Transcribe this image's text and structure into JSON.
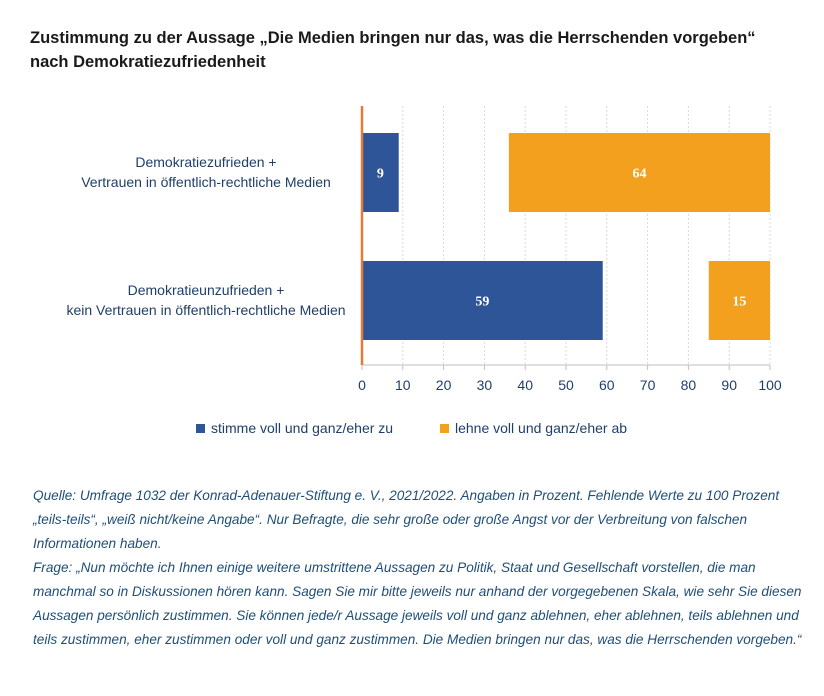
{
  "title_line1": "Zustimmung zu der Aussage „Die Medien bringen nur das, was die Herrschenden vorgeben“",
  "title_line2": "nach Demokratiezufriedenheit",
  "colors": {
    "agree": "#2e5597",
    "disagree": "#f2a01d",
    "axis": "#e07b39",
    "text": "#1f3f6a"
  },
  "chart_data": {
    "type": "bar",
    "orientation": "horizontal",
    "categories": [
      [
        "Demokratiezufrieden +",
        "Vertrauen in öffentlich-rechtliche Medien"
      ],
      [
        "Demokratieunzufrieden +",
        "kein Vertrauen in öffentlich-rechtliche Medien"
      ]
    ],
    "series": [
      {
        "name": "stimme voll und ganz/eher zu",
        "values": [
          9,
          59
        ],
        "anchor": "left"
      },
      {
        "name": "lehne voll und ganz/eher ab",
        "values": [
          64,
          15
        ],
        "anchor": "right"
      }
    ],
    "xlim": [
      0,
      100
    ],
    "xticks": [
      0,
      10,
      20,
      30,
      40,
      50,
      60,
      70,
      80,
      90,
      100
    ],
    "grid": true,
    "legend_position": "bottom"
  },
  "legend": {
    "agree_label": "stimme voll und ganz/eher zu",
    "disagree_label": "lehne voll und ganz/eher ab"
  },
  "notes": {
    "source": "Quelle: Umfrage 1032 der Konrad-Adenauer-Stiftung e. V., 2021/2022. Angaben in Prozent. Fehlende Werte zu 100 Prozent „teils-teils“, „weiß nicht/keine Angabe“. Nur Befragte, die sehr große oder große Angst vor der Verbreitung von falschen Informationen haben.",
    "question": "Frage: „Nun möchte ich Ihnen einige weitere umstrittene Aussagen zu Politik, Staat und Gesellschaft vorstellen, die man manchmal so in Diskussionen hören kann. Sagen Sie mir bitte jeweils nur anhand der vorgegebenen Skala, wie sehr Sie diesen Aussagen persönlich zustimmen. Sie können jede/r Aussage jeweils voll und ganz ablehnen, eher ablehnen, teils ablehnen und teils zustimmen, eher zustimmen oder voll und ganz zustimmen. Die Medien bringen nur das, was die Herrschenden vorgeben.“"
  }
}
